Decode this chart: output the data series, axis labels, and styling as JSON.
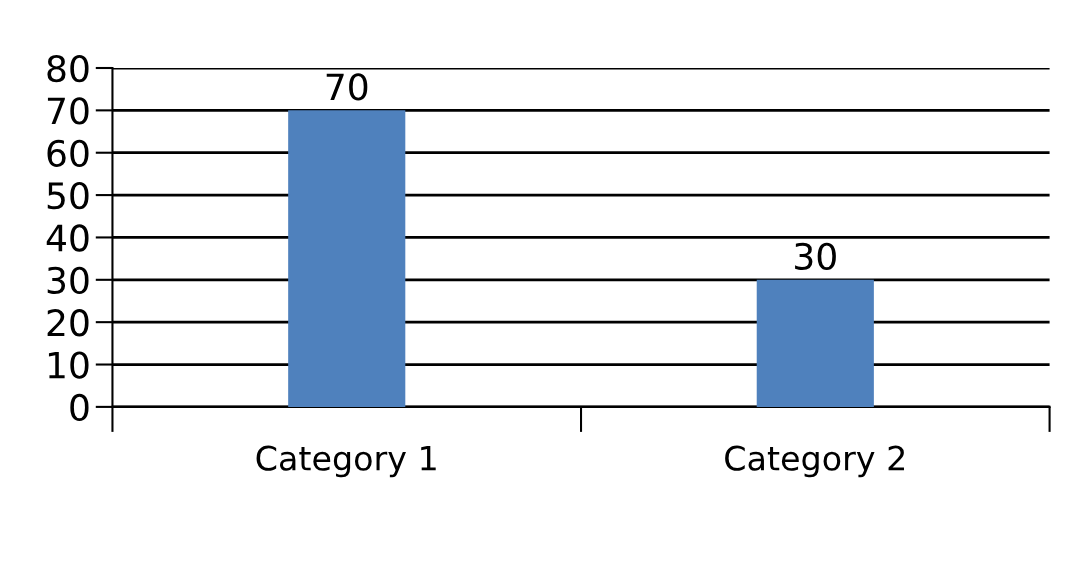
{
  "chart_data": {
    "type": "bar",
    "categories": [
      "Category 1",
      "Category 2"
    ],
    "values": [
      70,
      30
    ],
    "color": "#4f81bd",
    "ylim": [
      0,
      80
    ],
    "yticks": [
      0,
      10,
      20,
      30,
      40,
      50,
      60,
      70,
      80
    ],
    "grid": "y",
    "data_labels": true
  }
}
